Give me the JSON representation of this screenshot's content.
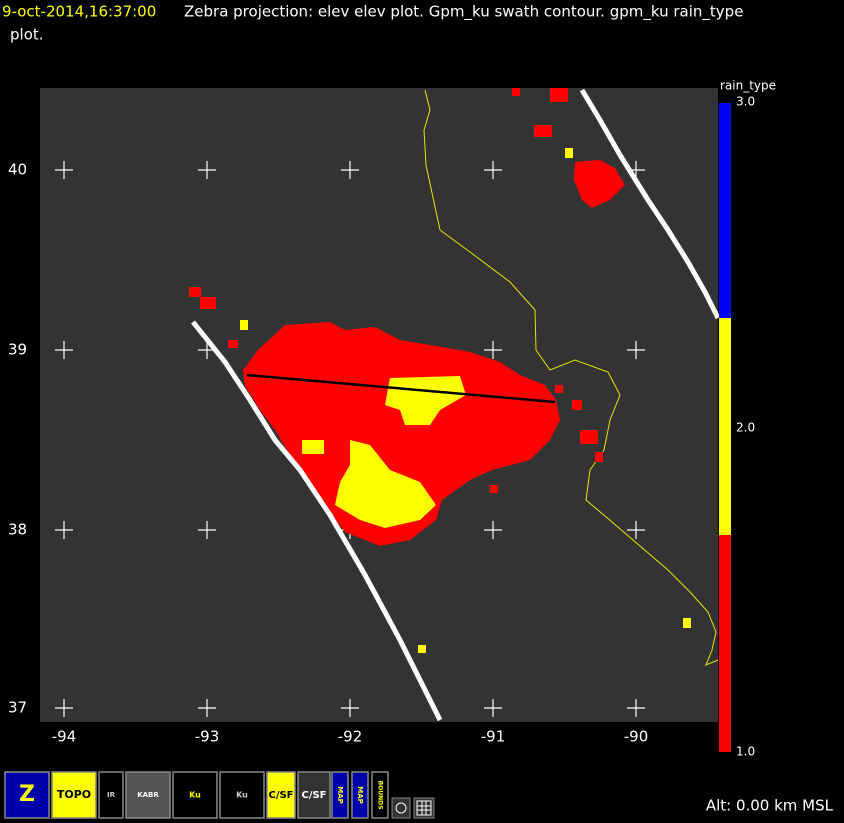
{
  "header": {
    "timestamp": "9-oct-2014,16:37:00",
    "title": "Zebra projection: elev elev  plot.  Gpm_ku swath contour.  gpm_ku rain_type",
    "title_cont": "plot."
  },
  "map": {
    "lat_labels": [
      "40",
      "39",
      "38",
      "37"
    ],
    "lon_labels": [
      "-94",
      "-93",
      "-92",
      "-91",
      "-90"
    ]
  },
  "colorbar": {
    "label": "rain_type",
    "ticks": [
      "3.0",
      "2.0",
      "1.0"
    ]
  },
  "toolbar": {
    "buttons": [
      "Z",
      "TOPO",
      "IR",
      "KABR",
      "Ku",
      "Ku",
      "C/SF",
      "C/SF",
      "MAP",
      "MAP",
      "BOUNDS"
    ]
  },
  "status": {
    "altitude": "Alt: 0.00 km MSL"
  }
}
